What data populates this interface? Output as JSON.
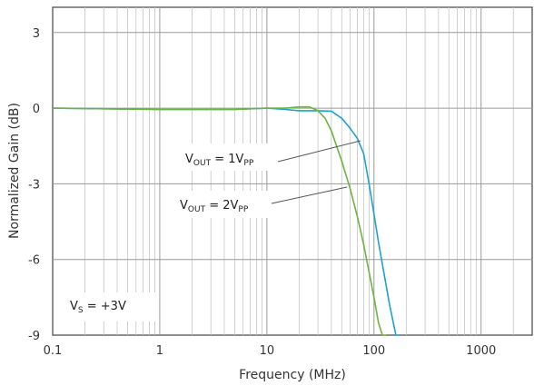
{
  "chart_data": {
    "type": "line",
    "title": "",
    "xlabel": "Frequency (MHz)",
    "ylabel": "Normalized Gain (dB)",
    "x_scale": "log",
    "xlim": [
      0.1,
      3000
    ],
    "ylim": [
      -9,
      4
    ],
    "x_ticks": [
      0.1,
      1,
      10,
      100,
      1000
    ],
    "x_tick_labels": [
      "0.1",
      "1",
      "10",
      "100",
      "1000"
    ],
    "y_ticks": [
      3,
      0,
      -3,
      -6,
      -9
    ],
    "y_tick_labels": [
      "3",
      "0",
      "-3",
      "-6",
      "-9"
    ],
    "grid": true,
    "series": [
      {
        "color": "#1ba3cf",
        "x": [
          0.1,
          1,
          5,
          10,
          15,
          20,
          30,
          40,
          50,
          60,
          70,
          80,
          90,
          100,
          110,
          120,
          140,
          160,
          170
        ],
        "y": [
          0,
          -0.05,
          -0.05,
          0,
          -0.05,
          -0.1,
          -0.1,
          -0.12,
          -0.4,
          -0.8,
          -1.2,
          -1.8,
          -3.0,
          -4.2,
          -5.3,
          -6.2,
          -7.8,
          -9.0,
          -9.5
        ]
      },
      {
        "color": "#6db33f",
        "x": [
          0.1,
          1,
          5,
          10,
          15,
          20,
          25,
          30,
          35,
          40,
          50,
          60,
          70,
          80,
          90,
          100,
          110,
          120,
          130
        ],
        "y": [
          0,
          -0.05,
          -0.05,
          0,
          0,
          0.05,
          0.05,
          -0.1,
          -0.4,
          -0.9,
          -2.1,
          -3.2,
          -4.3,
          -5.4,
          -6.5,
          -7.5,
          -8.5,
          -9.3,
          -9.8
        ]
      }
    ],
    "annotations": [
      {
        "id": "vout1",
        "main": "V",
        "sub1": "OUT",
        "mid": " = 1V",
        "sub2": "PP"
      },
      {
        "id": "vout2",
        "main": "V",
        "sub1": "OUT",
        "mid": " = 2V",
        "sub2": "PP"
      },
      {
        "id": "vs",
        "main": "V",
        "sub1": "S",
        "mid": " = +3V",
        "sub2": ""
      }
    ]
  }
}
